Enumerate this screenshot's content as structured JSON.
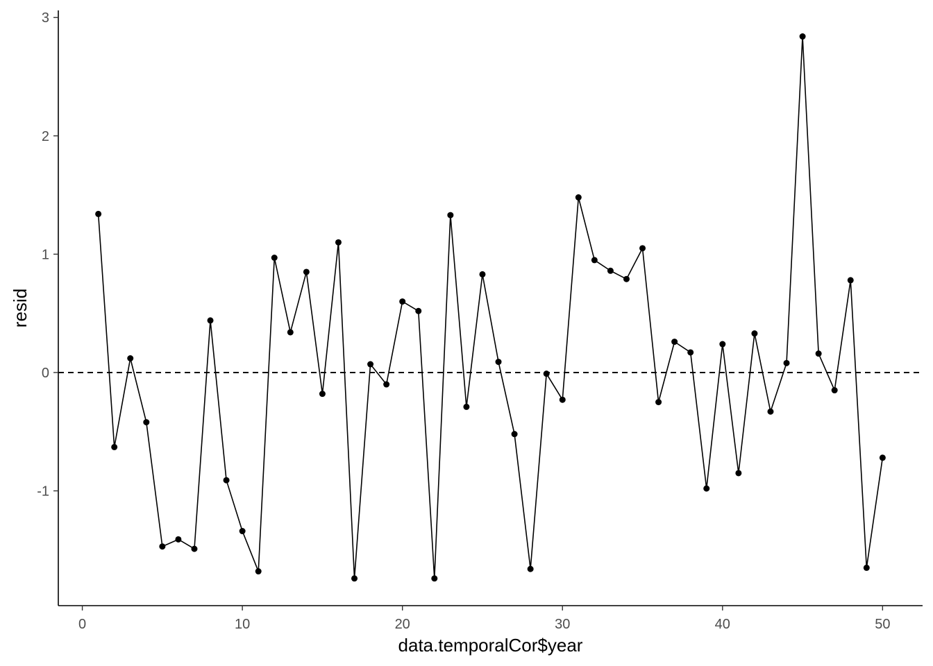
{
  "chart_data": {
    "type": "line",
    "xlabel": "data.temporalCor$year",
    "ylabel": "resid",
    "xlim": [
      -1.5,
      52.5
    ],
    "ylim": [
      -1.97,
      3.06
    ],
    "x_ticks": [
      0,
      10,
      20,
      30,
      40,
      50
    ],
    "x_tick_labels": [
      "0",
      "10",
      "20",
      "30",
      "40",
      "50"
    ],
    "y_ticks": [
      -1,
      0,
      1,
      2,
      3
    ],
    "y_tick_labels": [
      "-1",
      "0",
      "1",
      "2",
      "3"
    ],
    "grid": false,
    "reference_line": {
      "y": 0,
      "style": "dashed"
    },
    "series": [
      {
        "x": [
          1,
          2,
          3,
          4,
          5,
          6,
          7,
          8,
          9,
          10,
          11,
          12,
          13,
          14,
          15,
          16,
          17,
          18,
          19,
          20,
          21,
          22,
          23,
          24,
          25,
          26,
          27,
          28,
          29,
          30,
          31,
          32,
          33,
          34,
          35,
          36,
          37,
          38,
          39,
          40,
          41,
          42,
          43,
          44,
          45,
          46,
          47,
          48,
          49,
          50
        ],
        "values": [
          1.34,
          -0.63,
          0.12,
          -0.42,
          -1.47,
          -1.41,
          -1.49,
          0.44,
          -0.91,
          -1.34,
          -1.68,
          0.97,
          0.34,
          0.85,
          -0.18,
          1.1,
          -1.74,
          0.07,
          -0.1,
          0.6,
          0.52,
          -1.74,
          1.33,
          -0.29,
          0.83,
          0.09,
          -0.52,
          -1.66,
          -0.01,
          -0.23,
          1.48,
          0.95,
          0.86,
          0.79,
          1.05,
          -0.25,
          0.26,
          0.17,
          -0.98,
          0.24,
          -0.85,
          0.33,
          -0.33,
          0.08,
          2.84,
          0.16,
          -0.15,
          0.78,
          -1.65,
          -0.72
        ]
      }
    ],
    "colors": {
      "line": "#000000",
      "point": "#000000",
      "axis": "#000000",
      "tick_label": "#4d4d4d"
    }
  }
}
